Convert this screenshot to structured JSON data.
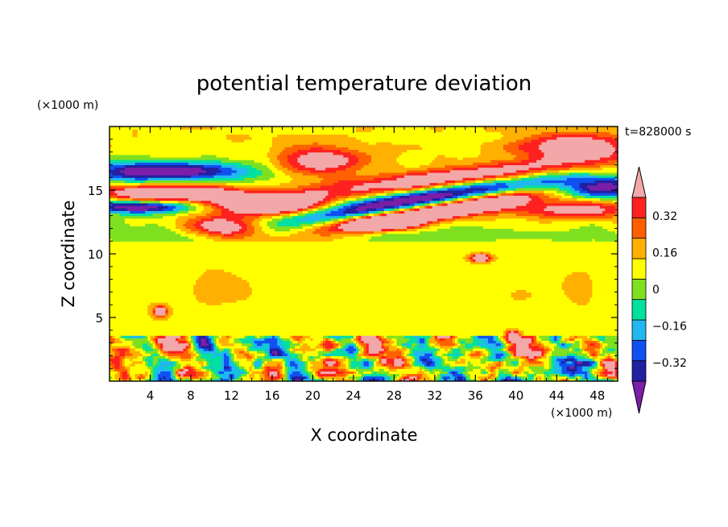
{
  "chart_data": {
    "type": "heatmap",
    "title": "potential temperature deviation",
    "xlabel": "X coordinate",
    "ylabel": "Z coordinate",
    "x_unit_label": "(×1000 m)",
    "y_unit_label": "(×1000 m)",
    "time_label": "t=828000 s",
    "xlim": [
      0,
      50
    ],
    "ylim": [
      0,
      20
    ],
    "x_ticks": [
      4,
      8,
      12,
      16,
      20,
      24,
      28,
      32,
      36,
      40,
      44,
      48
    ],
    "y_ticks": [
      5,
      10,
      15
    ],
    "colorbar": {
      "levels": [
        -0.48,
        -0.4,
        -0.32,
        -0.24,
        -0.16,
        -0.08,
        0,
        0.08,
        0.16,
        0.24,
        0.32,
        0.4,
        0.48
      ],
      "tick_labels": [
        {
          "value": 0.32,
          "label": "0.32"
        },
        {
          "value": 0.16,
          "label": "0.16"
        },
        {
          "value": 0,
          "label": "0"
        },
        {
          "value": -0.16,
          "label": "−0.16"
        },
        {
          "value": -0.32,
          "label": "−0.32"
        }
      ],
      "colors": [
        "#7a1fa8",
        "#2020a0",
        "#1050f0",
        "#20b8f0",
        "#00e0a0",
        "#7fe020",
        "#ffff00",
        "#ffb000",
        "#ff6000",
        "#ff2020",
        "#f2a8a8"
      ],
      "extend": "both"
    }
  }
}
